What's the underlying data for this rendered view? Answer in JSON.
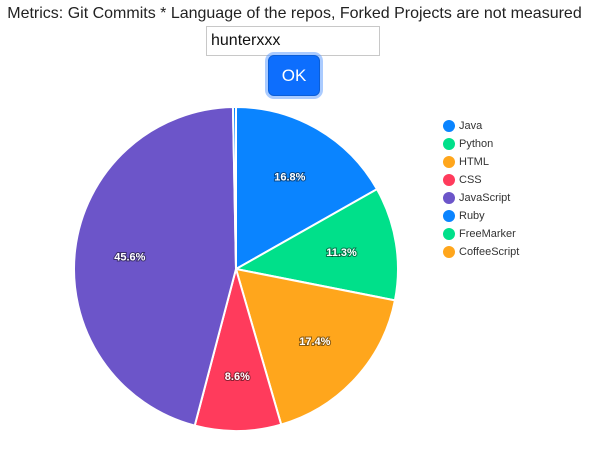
{
  "header": {
    "title": "Metrics: Git Commits * Language of the repos, Forked Projects are not measured"
  },
  "form": {
    "username_value": "hunterxxx",
    "ok_label": "OK"
  },
  "chart_data": {
    "type": "pie",
    "legend_position": "right",
    "start_angle_deg": 0,
    "slices": [
      {
        "label": "Java",
        "value": 16.8,
        "display": "16.8%",
        "color": "#0a84ff"
      },
      {
        "label": "Python",
        "value": 11.3,
        "display": "11.3%",
        "color": "#00e08a"
      },
      {
        "label": "HTML",
        "value": 17.4,
        "display": "17.4%",
        "color": "#ffa61c"
      },
      {
        "label": "CSS",
        "value": 8.6,
        "display": "8.6%",
        "color": "#ff3b5c"
      },
      {
        "label": "JavaScript",
        "value": 45.6,
        "display": "45.6%",
        "color": "#6c55c9"
      },
      {
        "label": "Ruby",
        "value": 0.3,
        "display": "",
        "color": "#0a84ff"
      },
      {
        "label": "FreeMarker",
        "value": 0.0,
        "display": "",
        "color": "#00e08a"
      },
      {
        "label": "CoffeeScript",
        "value": 0.0,
        "display": "",
        "color": "#ffa61c"
      }
    ]
  }
}
